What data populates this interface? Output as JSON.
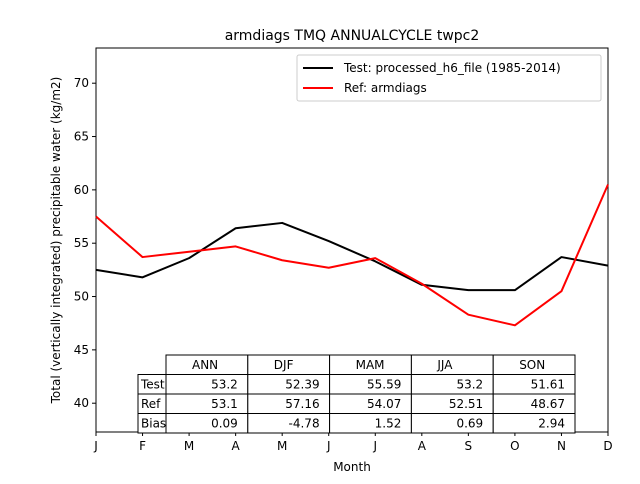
{
  "chart_data": {
    "type": "line",
    "title": "armdiags TMQ ANNUALCYCLE twpc2",
    "xlabel": "Month",
    "ylabel": "Total (vertically integrated) precipitable water (kg/m2)",
    "x_ticks": [
      "J",
      "F",
      "M",
      "A",
      "M",
      "J",
      "J",
      "A",
      "S",
      "O",
      "N",
      "D"
    ],
    "y_ticks": [
      40,
      45,
      50,
      55,
      60,
      65,
      70
    ],
    "ylim": [
      37.3,
      73.3
    ],
    "xlim": [
      1,
      12
    ],
    "legend_position": "upper right",
    "grid": false,
    "series": [
      {
        "name": "Test: processed_h6_file (1985-2014)",
        "color": "#000000",
        "values": [
          52.5,
          51.8,
          53.6,
          56.4,
          56.9,
          55.2,
          53.3,
          51.1,
          50.6,
          50.6,
          53.7,
          52.9
        ]
      },
      {
        "name": "Ref: armdiags",
        "color": "#ff0000",
        "values": [
          57.5,
          53.7,
          54.2,
          54.7,
          53.4,
          52.7,
          53.6,
          51.2,
          48.3,
          47.3,
          50.5,
          60.5
        ]
      }
    ],
    "table": {
      "columns": [
        "ANN",
        "DJF",
        "MAM",
        "JJA",
        "SON"
      ],
      "rows": [
        {
          "label": "Test",
          "values": [
            "53.2",
            "52.39",
            "55.59",
            "53.2",
            "51.61"
          ]
        },
        {
          "label": "Ref",
          "values": [
            "53.1",
            "57.16",
            "54.07",
            "52.51",
            "48.67"
          ]
        },
        {
          "label": "Bias",
          "values": [
            "0.09",
            "-4.78",
            "1.52",
            "0.69",
            "2.94"
          ]
        }
      ]
    }
  }
}
